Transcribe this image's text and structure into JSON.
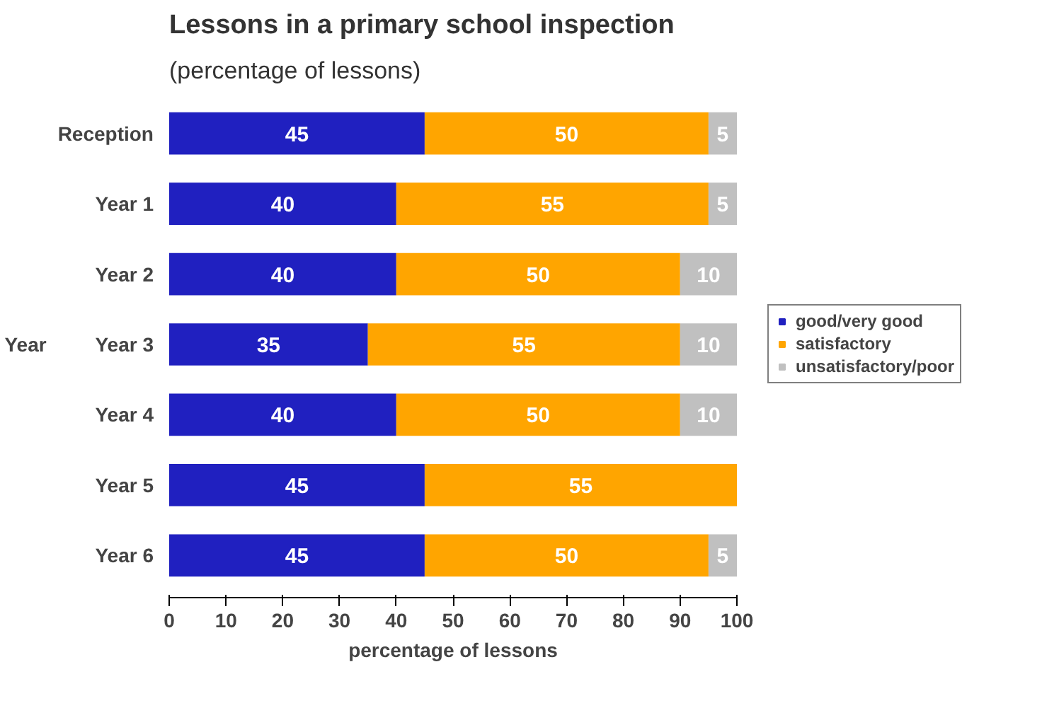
{
  "chart_data": {
    "type": "bar",
    "orientation": "horizontal",
    "stacked": true,
    "title": "Lessons in a primary school inspection",
    "subtitle": "(percentage of lessons)",
    "xlabel": "percentage of lessons",
    "ylabel": "Year",
    "categories": [
      "Reception",
      "Year 1",
      "Year 2",
      "Year 3",
      "Year 4",
      "Year 5",
      "Year 6"
    ],
    "series": [
      {
        "name": "good/very good",
        "color": "#2020c0",
        "values": [
          45,
          40,
          40,
          35,
          40,
          45,
          45
        ],
        "value_labels": [
          "45",
          "40",
          "40",
          "35",
          "40",
          "45",
          "45"
        ]
      },
      {
        "name": "satisfactory",
        "color": "#ffa500",
        "values": [
          50,
          55,
          50,
          55,
          50,
          55,
          50
        ],
        "value_labels": [
          "50",
          "55",
          "50",
          "55",
          "50",
          "55",
          "50"
        ]
      },
      {
        "name": "unsatisfactory/poor",
        "color": "#c0c0c0",
        "values": [
          5,
          5,
          10,
          10,
          10,
          0,
          5
        ],
        "value_labels": [
          "5",
          "5",
          "10",
          "10",
          "10",
          null,
          "5"
        ]
      }
    ],
    "xlim": [
      0,
      100
    ],
    "xticks": [
      0,
      10,
      20,
      30,
      40,
      50,
      60,
      70,
      80,
      90,
      100
    ],
    "grid": false,
    "legend": "right"
  }
}
